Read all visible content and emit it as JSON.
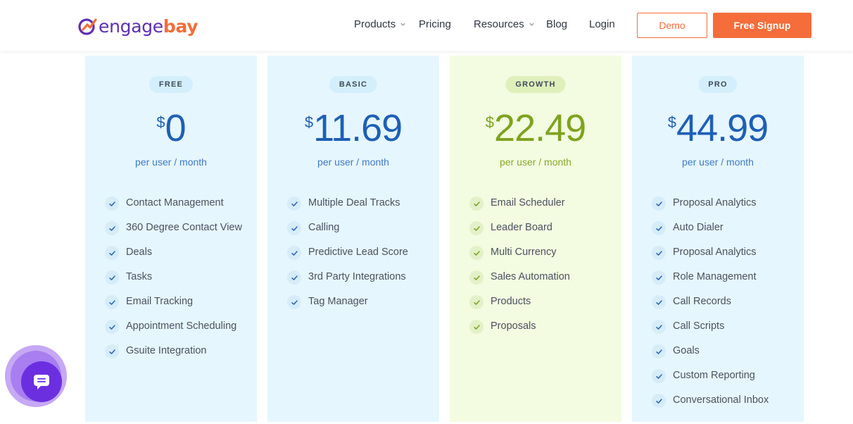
{
  "header": {
    "logo": {
      "part1": "engage",
      "part2": "bay"
    },
    "nav": [
      {
        "label": "Products",
        "dropdown": true
      },
      {
        "label": "Pricing",
        "dropdown": false
      },
      {
        "label": "Resources",
        "dropdown": true
      },
      {
        "label": "Blog",
        "dropdown": false
      },
      {
        "label": "Login",
        "dropdown": false
      }
    ],
    "demo_label": "Demo",
    "signup_label": "Free Signup"
  },
  "colors": {
    "brand_purple": "#5d2fb2",
    "brand_orange": "#f46d3b",
    "price_blue": "#1e5fb5",
    "price_green": "#7ea31f",
    "card_blue_bg": "#e6f6fe",
    "card_green_bg": "#f3fbe0"
  },
  "plans": [
    {
      "name": "FREE",
      "currency": "$",
      "price": "0",
      "period": "per user / month",
      "features": [
        "Contact Management",
        "360 Degree Contact View",
        "Deals",
        "Tasks",
        "Email Tracking",
        "Appointment Scheduling",
        "Gsuite Integration"
      ]
    },
    {
      "name": "BASIC",
      "currency": "$",
      "price": "11.69",
      "period": "per user / month",
      "features": [
        "Multiple Deal Tracks",
        "Calling",
        "Predictive Lead Score",
        "3rd Party Integrations",
        "Tag Manager"
      ]
    },
    {
      "name": "GROWTH",
      "currency": "$",
      "price": "22.49",
      "period": "per user / month",
      "features": [
        "Email Scheduler",
        "Leader Board",
        "Multi Currency",
        "Sales Automation",
        "Products",
        "Proposals"
      ]
    },
    {
      "name": "PRO",
      "currency": "$",
      "price": "44.99",
      "period": "per user / month",
      "features": [
        "Proposal Analytics",
        "Auto Dialer",
        "Proposal Analytics",
        "Role Management",
        "Call Records",
        "Call Scripts",
        "Goals",
        "Custom Reporting",
        "Conversational Inbox"
      ]
    }
  ],
  "chat_widget": {
    "icon": "chat-bubble-icon"
  }
}
